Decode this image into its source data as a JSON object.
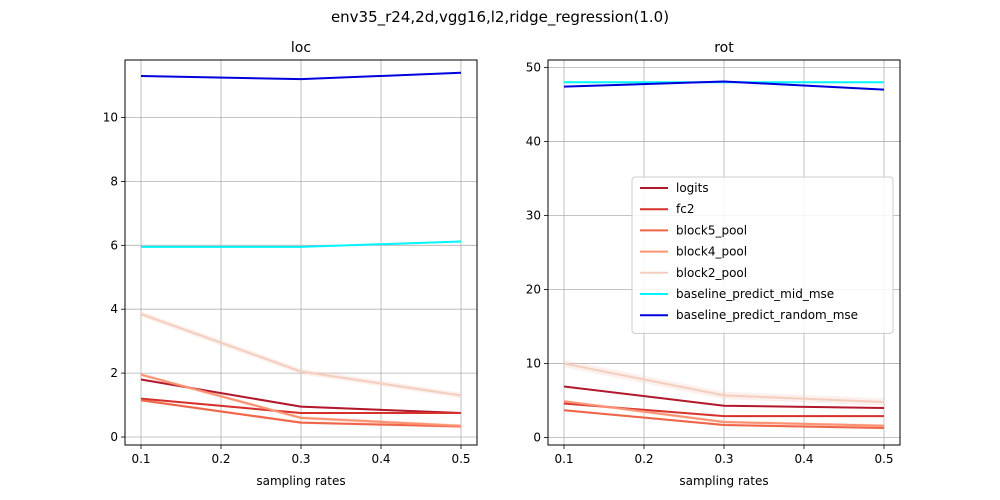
{
  "figure": {
    "suptitle": "env35_r24,2d,vgg16,l2,ridge_regression(1.0)"
  },
  "chart_data": [
    {
      "type": "line",
      "title": "loc",
      "xlabel": "sampling rates",
      "ylabel": "",
      "x": [
        0.1,
        0.3,
        0.5
      ],
      "xlim": [
        0.08,
        0.52
      ],
      "ylim": [
        -0.25,
        11.8
      ],
      "xticks": [
        "0.1",
        "0.2",
        "0.3",
        "0.4",
        "0.5"
      ],
      "yticks": [
        "0",
        "2",
        "4",
        "6",
        "8",
        "10"
      ],
      "grid": true,
      "series": [
        {
          "name": "logits",
          "values": [
            1.8,
            0.95,
            0.75
          ],
          "band": 0.03,
          "color": "#b2182b"
        },
        {
          "name": "fc2",
          "values": [
            1.2,
            0.75,
            0.75
          ],
          "band": 0.03,
          "color": "#d6302b"
        },
        {
          "name": "block5_pool",
          "values": [
            1.15,
            0.45,
            0.33
          ],
          "band": 0.04,
          "color": "#ef6548"
        },
        {
          "name": "block4_pool",
          "values": [
            1.95,
            0.6,
            0.35
          ],
          "band": 0.05,
          "color": "#fc9272"
        },
        {
          "name": "block2_pool",
          "values": [
            3.85,
            2.05,
            1.3
          ],
          "band": 0.09,
          "color": "#f4cdbf"
        },
        {
          "name": "baseline_predict_mid_mse",
          "values": [
            5.95,
            5.95,
            6.12
          ],
          "band": 0.02,
          "color": "#00f5ff"
        },
        {
          "name": "baseline_predict_random_mse",
          "values": [
            11.3,
            11.2,
            11.4
          ],
          "band": 0.02,
          "color": "#0000dd"
        }
      ]
    },
    {
      "type": "line",
      "title": "rot",
      "xlabel": "sampling rates",
      "ylabel": "",
      "x": [
        0.1,
        0.3,
        0.5
      ],
      "xlim": [
        0.08,
        0.52
      ],
      "ylim": [
        -1,
        51
      ],
      "xticks": [
        "0.1",
        "0.2",
        "0.3",
        "0.4",
        "0.5"
      ],
      "yticks": [
        "0",
        "10",
        "20",
        "30",
        "40",
        "50"
      ],
      "grid": true,
      "legend": "center-right",
      "series": [
        {
          "name": "logits",
          "values": [
            6.9,
            4.3,
            4.0
          ],
          "band": 0.1,
          "color": "#b2182b"
        },
        {
          "name": "fc2",
          "values": [
            4.6,
            2.9,
            2.9
          ],
          "band": 0.1,
          "color": "#d6302b"
        },
        {
          "name": "block5_pool",
          "values": [
            3.7,
            1.7,
            1.3
          ],
          "band": 0.15,
          "color": "#ef6548"
        },
        {
          "name": "block4_pool",
          "values": [
            4.9,
            2.1,
            1.6
          ],
          "band": 0.2,
          "color": "#fc9272"
        },
        {
          "name": "block2_pool",
          "values": [
            10.0,
            5.7,
            4.8
          ],
          "band": 0.5,
          "color": "#f4cdbf"
        },
        {
          "name": "baseline_predict_mid_mse",
          "values": [
            48.0,
            48.0,
            48.0
          ],
          "band": 0.05,
          "color": "#00f5ff"
        },
        {
          "name": "baseline_predict_random_mse",
          "values": [
            47.4,
            48.1,
            47.0
          ],
          "band": 0.1,
          "color": "#0000dd"
        }
      ]
    }
  ]
}
